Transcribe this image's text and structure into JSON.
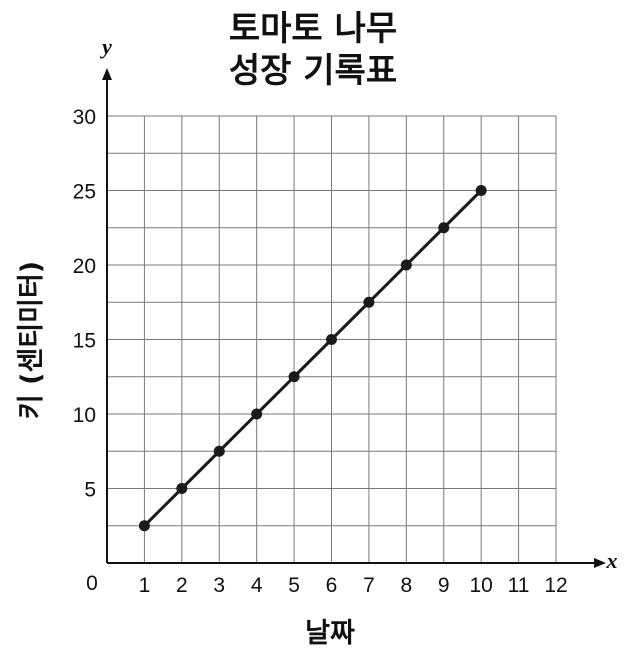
{
  "chart_data": {
    "type": "line",
    "title": [
      "토마토 나무",
      "성장 기록표"
    ],
    "xlabel": "날짜",
    "ylabel": "키 (센티미터)",
    "x_var": "x",
    "y_var": "y",
    "origin_label": "0",
    "xlim": [
      0,
      12
    ],
    "ylim": [
      0,
      30
    ],
    "x_ticks": [
      1,
      2,
      3,
      4,
      5,
      6,
      7,
      8,
      9,
      10,
      11,
      12
    ],
    "y_ticks": [
      5,
      10,
      15,
      20,
      25,
      30
    ],
    "grid": true,
    "grid_minor_y": 2.5,
    "series": [
      {
        "x": [
          1,
          2,
          3,
          4,
          5,
          6,
          7,
          8,
          9,
          10
        ],
        "y": [
          2.5,
          5,
          7.5,
          10,
          12.5,
          15,
          17.5,
          20,
          22.5,
          25
        ],
        "color": "#1a1a1a",
        "markers": true
      }
    ]
  }
}
